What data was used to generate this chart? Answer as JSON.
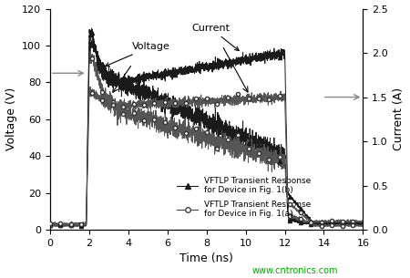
{
  "xlabel": "Time (ns)",
  "ylabel_left": "Voltage (V)",
  "ylabel_right": "Current (A)",
  "xlim": [
    0,
    16
  ],
  "ylim_left": [
    0,
    120
  ],
  "ylim_right": [
    0,
    2.5
  ],
  "xticks": [
    0,
    2,
    4,
    6,
    8,
    10,
    12,
    14,
    16
  ],
  "yticks_left": [
    0,
    20,
    40,
    60,
    80,
    100,
    120
  ],
  "yticks_right": [
    0.0,
    0.5,
    1.0,
    1.5,
    2.0,
    2.5
  ],
  "legend_1b": "VFTLP Transient Response\nfor Device in Fig. 1(b)",
  "legend_1a": "VFTLP Transient Response\nfor Device in Fig. 1(a)",
  "voltage_label": "Voltage",
  "current_label": "Current",
  "watermark": "www.cntronics.com",
  "bg_color": "#ffffff"
}
